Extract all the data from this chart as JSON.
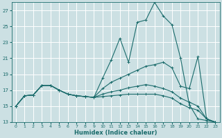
{
  "xlabel": "Humidex (Indice chaleur)",
  "xlim": [
    -0.5,
    23.5
  ],
  "ylim": [
    13,
    28
  ],
  "yticks": [
    13,
    15,
    17,
    19,
    21,
    23,
    25,
    27
  ],
  "xticks": [
    0,
    1,
    2,
    3,
    4,
    5,
    6,
    7,
    8,
    9,
    10,
    11,
    12,
    13,
    14,
    15,
    16,
    17,
    18,
    19,
    20,
    21,
    22,
    23
  ],
  "bg_color": "#cce0e3",
  "line_color": "#1a6b6b",
  "grid_color": "#ffffff",
  "lines": [
    [
      15.0,
      16.3,
      16.4,
      17.6,
      17.6,
      17.0,
      16.5,
      16.3,
      16.2,
      16.1,
      18.5,
      20.8,
      23.5,
      20.5,
      25.5,
      25.8,
      28.0,
      26.3,
      25.2,
      21.0,
      15.2,
      13.4,
      13.2,
      13.0
    ],
    [
      15.0,
      16.3,
      16.4,
      17.6,
      17.6,
      17.0,
      16.5,
      16.3,
      16.2,
      16.1,
      17.2,
      18.0,
      18.5,
      19.0,
      19.5,
      20.0,
      20.2,
      20.5,
      19.8,
      17.5,
      17.2,
      21.2,
      13.4,
      13.0
    ],
    [
      15.0,
      16.3,
      16.4,
      17.6,
      17.6,
      17.0,
      16.5,
      16.3,
      16.2,
      16.1,
      16.5,
      16.8,
      17.0,
      17.3,
      17.5,
      17.7,
      17.5,
      17.2,
      16.8,
      16.0,
      15.5,
      15.0,
      13.4,
      13.0
    ],
    [
      15.0,
      16.3,
      16.4,
      17.6,
      17.6,
      17.0,
      16.5,
      16.3,
      16.2,
      16.1,
      16.2,
      16.3,
      16.4,
      16.5,
      16.5,
      16.5,
      16.5,
      16.3,
      16.0,
      15.3,
      14.8,
      14.5,
      13.4,
      13.0
    ]
  ]
}
